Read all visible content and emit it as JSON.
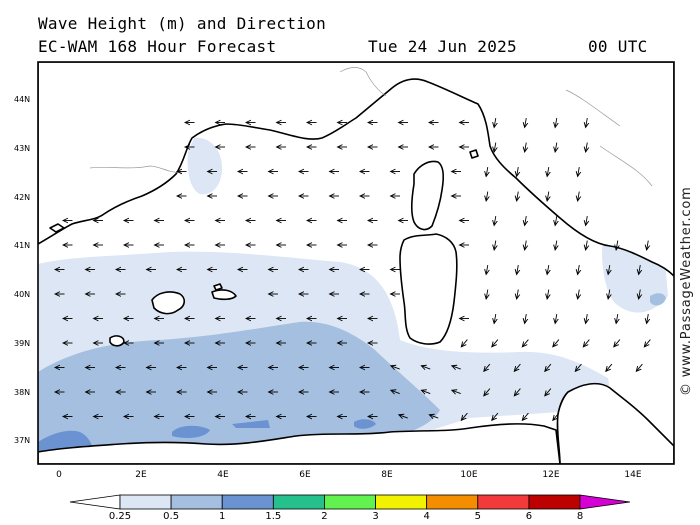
{
  "header": {
    "title_line1": "Wave Height (m) and Direction",
    "title_line2": "EC-WAM 168 Hour Forecast",
    "date": "Tue 24 Jun 2025",
    "time": "00 UTC"
  },
  "watermark": "© www.PassageWeather.com",
  "map": {
    "lon_labels": [
      "0",
      "2E",
      "4E",
      "6E",
      "8E",
      "10E",
      "12E",
      "14E"
    ],
    "lat_labels": [
      "44N",
      "43N",
      "42N",
      "41N",
      "40N",
      "39N",
      "38N",
      "37N"
    ],
    "land_color": "#ffffff",
    "coast_color": "#000000"
  },
  "colorbar": {
    "labels": [
      "0.25",
      "0.5",
      "1",
      "1.5",
      "2",
      "3",
      "4",
      "5",
      "6",
      "8"
    ],
    "colors": [
      "#ffffff",
      "#dde6f4",
      "#a5bfe0",
      "#6b93d2",
      "#26c08d",
      "#62f250",
      "#f2f200",
      "#f48d00",
      "#f23a3a",
      "#bd0000",
      "#d400d4"
    ]
  }
}
